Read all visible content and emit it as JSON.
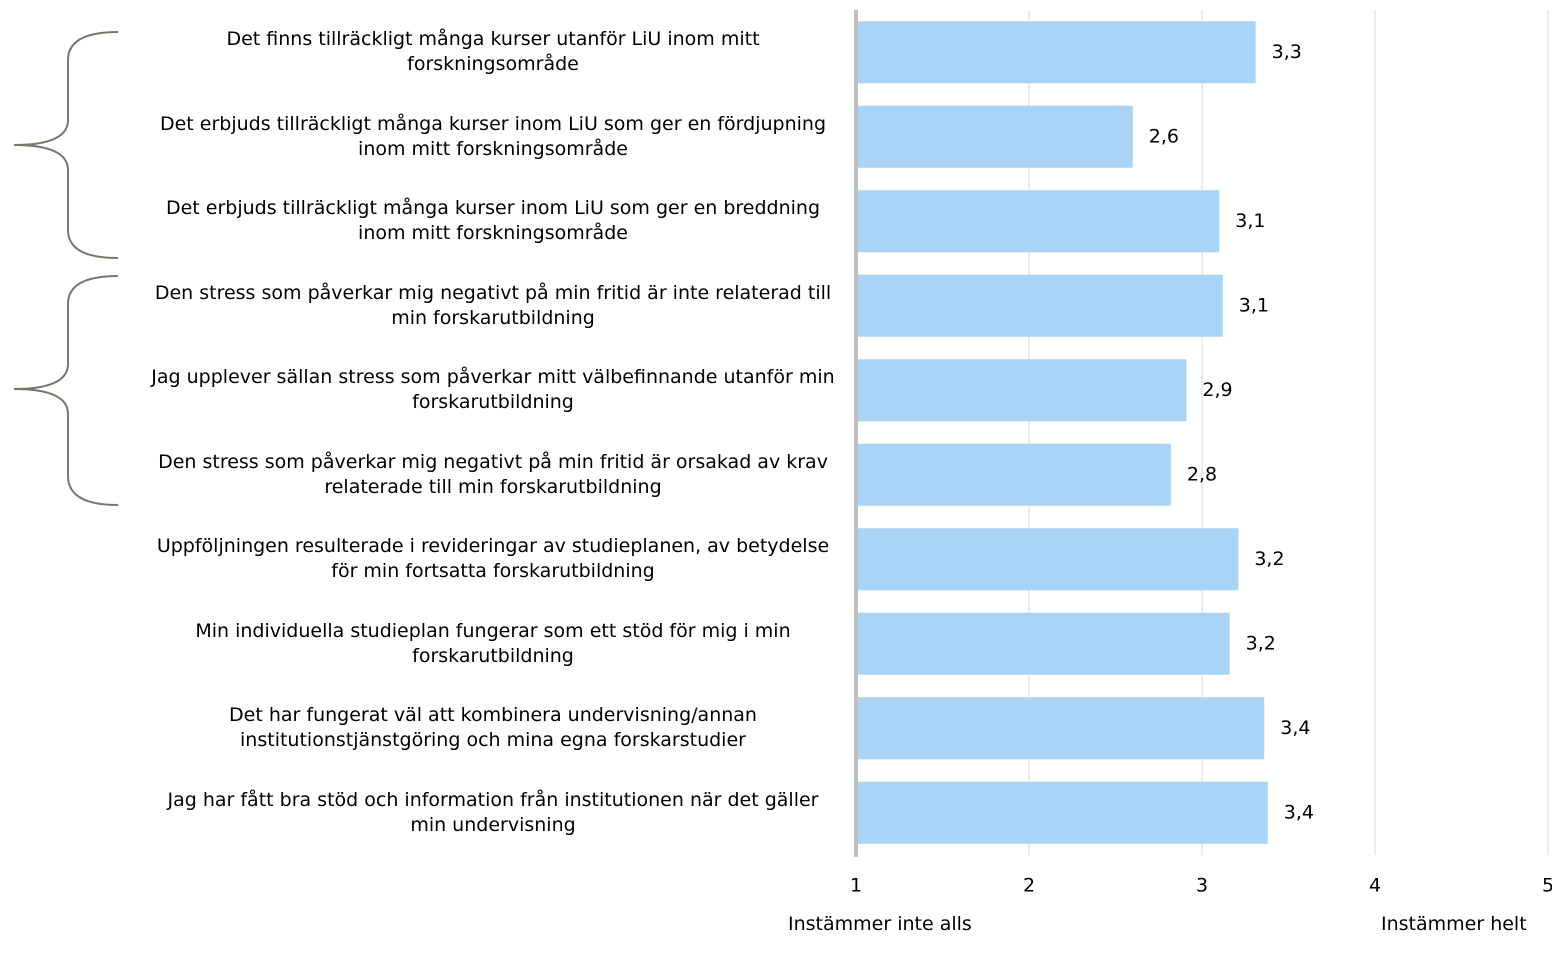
{
  "chart_data": {
    "type": "barh",
    "categories": [
      "Det finns tillräckligt många kurser utanför LiU inom mitt forskningsområde",
      "Det erbjuds tillräckligt många kurser inom LiU som ger en fördjupning inom mitt forskningsområde",
      "Det erbjuds tillräckligt många kurser inom LiU som ger en breddning inom mitt forskningsområde",
      "Den stress som påverkar mig negativt på min fritid är inte relaterad till min forskarutbildning",
      "Jag upplever sällan stress som påverkar mitt välbefinnande utanför min forskarutbildning",
      "Den stress som påverkar mig negativt på min fritid är orsakad av krav relaterade till min forskarutbildning",
      "Uppföljningen resulterade i revideringar av studieplanen, av betydelse för min fortsatta forskarutbildning",
      "Min individuella studieplan fungerar som ett stöd för mig i min forskarutbildning",
      "Det har fungerat väl att kombinera undervisning/annan institutionstjänstgöring och mina egna forskarstudier",
      "Jag har fått bra stöd och information från institutionen när det gäller min undervisning"
    ],
    "values": [
      3.31,
      2.6,
      3.1,
      3.12,
      2.91,
      2.82,
      3.21,
      3.16,
      3.36,
      3.38
    ],
    "value_labels": [
      "3,3",
      "2,6",
      "3,1",
      "3,1",
      "2,9",
      "2,8",
      "3,2",
      "3,2",
      "3,4",
      "3,4"
    ],
    "color": "#a9d4f5",
    "xlim": [
      1,
      5
    ],
    "xticks": [
      1,
      2,
      3,
      4,
      5
    ],
    "grid": true,
    "annotations": [
      "Instämmer inte alls",
      "Instämmer helt"
    ]
  }
}
